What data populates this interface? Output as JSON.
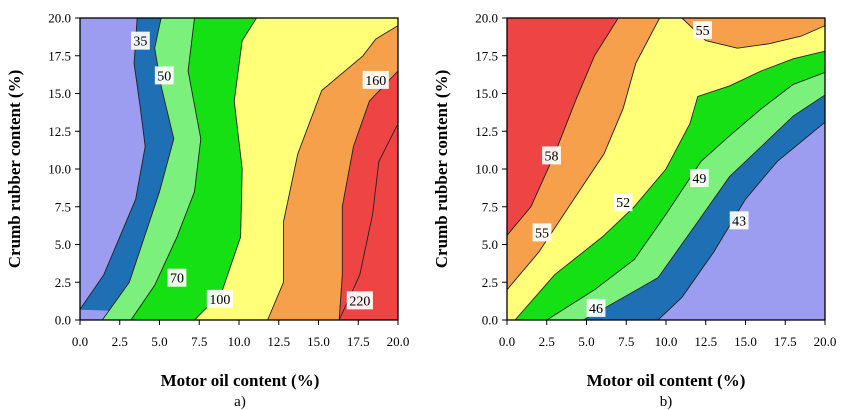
{
  "chart_data": [
    {
      "type": "contour",
      "panel_label": "a)",
      "xlabel": "Motor oil content (%)",
      "ylabel": "Crumb rubber content (%)",
      "xlim": [
        0,
        20
      ],
      "ylim": [
        0,
        20
      ],
      "x_ticks": [
        "0.0",
        "2.5",
        "5.0",
        "7.5",
        "10.0",
        "12.5",
        "15.0",
        "17.5",
        "20.0"
      ],
      "y_ticks": [
        "0.0",
        "2.5",
        "5.0",
        "7.5",
        "10.0",
        "12.5",
        "15.0",
        "17.5",
        "20.0"
      ],
      "levels": [
        35,
        50,
        70,
        100,
        160,
        220
      ],
      "region_colors": [
        "#9c9cf0",
        "#1e6fb4",
        "#7cf07c",
        "#14e014",
        "#ffff78",
        "#f7a04c",
        "#ee4444"
      ],
      "contour_labels": [
        {
          "text": "35",
          "x": 3.8,
          "y": 18.5
        },
        {
          "text": "50",
          "x": 5.3,
          "y": 16.2
        },
        {
          "text": "70",
          "x": 6.1,
          "y": 2.8
        },
        {
          "text": "100",
          "x": 8.8,
          "y": 1.4
        },
        {
          "text": "160",
          "x": 18.6,
          "y": 15.9
        },
        {
          "text": "220",
          "x": 17.6,
          "y": 1.3
        }
      ],
      "contours": [
        {
          "level": 35,
          "points": [
            [
              0,
              0.7
            ],
            [
              1.5,
              3.0
            ],
            [
              3.5,
              8.0
            ],
            [
              4.1,
              11.5
            ],
            [
              3.8,
              14.0
            ],
            [
              3.4,
              17.0
            ],
            [
              3.6,
              20.0
            ]
          ]
        },
        {
          "level": 50,
          "points": [
            [
              1.4,
              0
            ],
            [
              3.1,
              2.5
            ],
            [
              5.0,
              8.5
            ],
            [
              5.9,
              12.0
            ],
            [
              5.1,
              15.5
            ],
            [
              4.7,
              18.0
            ],
            [
              5.1,
              20.0
            ]
          ]
        },
        {
          "level": 70,
          "points": [
            [
              3.2,
              0
            ],
            [
              4.7,
              2.3
            ],
            [
              6.1,
              5.5
            ],
            [
              7.2,
              8.5
            ],
            [
              7.6,
              12.0
            ],
            [
              6.8,
              16.5
            ],
            [
              7.2,
              20.0
            ]
          ]
        },
        {
          "level": 100,
          "points": [
            [
              7.2,
              0
            ],
            [
              8.9,
              1.8
            ],
            [
              10.1,
              5.5
            ],
            [
              10.2,
              10.0
            ],
            [
              9.7,
              14.5
            ],
            [
              10.2,
              18.5
            ],
            [
              11.1,
              20.0
            ]
          ]
        },
        {
          "level": 160,
          "points": [
            [
              11.8,
              0
            ],
            [
              12.8,
              2.5
            ],
            [
              12.8,
              6.5
            ],
            [
              13.7,
              11.0
            ],
            [
              15.2,
              15.2
            ],
            [
              17.8,
              17.5
            ],
            [
              18.6,
              18.6
            ],
            [
              20.0,
              19.5
            ]
          ]
        },
        {
          "level": 220,
          "points": [
            [
              16.3,
              0
            ],
            [
              16.5,
              3.0
            ],
            [
              16.5,
              7.5
            ],
            [
              17.2,
              11.5
            ],
            [
              18.2,
              14.5
            ],
            [
              20.0,
              16.5
            ]
          ]
        },
        {
          "level": "220+",
          "points": [
            [
              16.3,
              0
            ],
            [
              17.6,
              3.0
            ],
            [
              18.4,
              7.0
            ],
            [
              18.8,
              10.5
            ],
            [
              20.0,
              13.0
            ]
          ]
        }
      ]
    },
    {
      "type": "contour",
      "panel_label": "b)",
      "xlabel": "Motor oil content (%)",
      "ylabel": "Crumb rubber content (%)",
      "xlim": [
        0,
        20
      ],
      "ylim": [
        0,
        20
      ],
      "x_ticks": [
        "0.0",
        "2.5",
        "5.0",
        "7.5",
        "10.0",
        "12.5",
        "15.0",
        "17.5",
        "20.0"
      ],
      "y_ticks": [
        "0.0",
        "2.5",
        "5.0",
        "7.5",
        "10.0",
        "12.5",
        "15.0",
        "17.5",
        "20.0"
      ],
      "levels": [
        43,
        46,
        49,
        52,
        55,
        58
      ],
      "region_colors": [
        "#ee4444",
        "#f7a04c",
        "#ffff78",
        "#14e014",
        "#7cf07c",
        "#1e6fb4",
        "#9c9cf0"
      ],
      "contour_labels": [
        {
          "text": "58",
          "x": 2.8,
          "y": 10.9
        },
        {
          "text": "55",
          "x": 2.2,
          "y": 5.8
        },
        {
          "text": "52",
          "x": 7.3,
          "y": 7.8
        },
        {
          "text": "49",
          "x": 12.1,
          "y": 9.4
        },
        {
          "text": "43",
          "x": 14.6,
          "y": 6.6
        },
        {
          "text": "46",
          "x": 5.6,
          "y": 0.8
        },
        {
          "text": "55",
          "x": 12.3,
          "y": 19.2
        }
      ],
      "contours": [
        {
          "level": 58,
          "points": [
            [
              0,
              5.6
            ],
            [
              1.5,
              7.5
            ],
            [
              3.0,
              11.0
            ],
            [
              4.3,
              14.5
            ],
            [
              5.5,
              17.5
            ],
            [
              7.0,
              20.0
            ]
          ]
        },
        {
          "level": 55,
          "points": [
            [
              0,
              2.0
            ],
            [
              2.0,
              4.5
            ],
            [
              4.2,
              8.0
            ],
            [
              6.1,
              11.0
            ],
            [
              7.3,
              14.0
            ],
            [
              8.1,
              17.0
            ],
            [
              9.6,
              20.0
            ]
          ]
        },
        {
          "level": 52,
          "points": [
            [
              0.5,
              0
            ],
            [
              3.0,
              3.0
            ],
            [
              6.0,
              5.5
            ],
            [
              8.0,
              7.5
            ],
            [
              10.0,
              10.0
            ],
            [
              11.5,
              13.0
            ],
            [
              12.0,
              14.8
            ],
            [
              14.0,
              15.5
            ],
            [
              16.0,
              16.5
            ],
            [
              18.0,
              17.3
            ],
            [
              20.0,
              17.8
            ]
          ]
        },
        {
          "level": 49,
          "points": [
            [
              2.5,
              0
            ],
            [
              5.5,
              2.0
            ],
            [
              8.0,
              4.0
            ],
            [
              10.0,
              7.0
            ],
            [
              12.2,
              10.5
            ],
            [
              14.0,
              12.2
            ],
            [
              16.0,
              14.0
            ],
            [
              18.0,
              15.6
            ],
            [
              20.0,
              16.4
            ]
          ]
        },
        {
          "level": 46,
          "points": [
            [
              4.8,
              0
            ],
            [
              7.0,
              1.3
            ],
            [
              9.5,
              2.8
            ],
            [
              12.0,
              6.5
            ],
            [
              14.0,
              9.5
            ],
            [
              16.0,
              11.5
            ],
            [
              18.0,
              13.5
            ],
            [
              20.0,
              14.9
            ]
          ]
        },
        {
          "level": 43,
          "points": [
            [
              9.5,
              0
            ],
            [
              11.0,
              1.5
            ],
            [
              13.0,
              4.5
            ],
            [
              15.0,
              8.0
            ],
            [
              17.0,
              10.5
            ],
            [
              20.0,
              13.1
            ]
          ]
        },
        {
          "level": "55-island",
          "points": [
            [
              11.0,
              20.0
            ],
            [
              12.5,
              18.5
            ],
            [
              14.5,
              18.0
            ],
            [
              16.5,
              18.3
            ],
            [
              18.5,
              18.8
            ],
            [
              20.0,
              19.5
            ]
          ]
        }
      ]
    }
  ]
}
